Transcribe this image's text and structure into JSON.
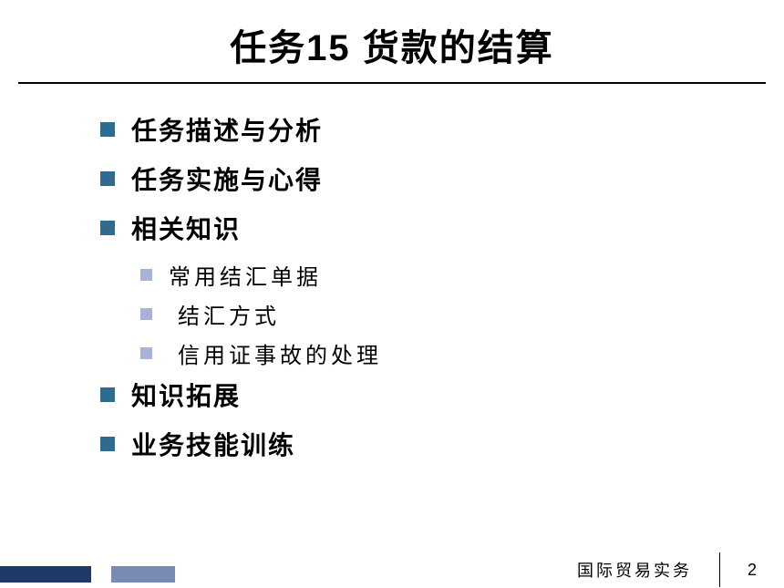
{
  "title": "任务15 货款的结算",
  "bullets": {
    "item1": "任务描述与分析",
    "item2": "任务实施与心得",
    "item3": "相关知识",
    "sub1": "常用结汇单据",
    "sub2": "结汇方式",
    "sub3": "信用证事故的处理",
    "item4": "知识拓展",
    "item5": "业务技能训练"
  },
  "footer": {
    "course": "国际贸易实务",
    "page": "2"
  },
  "colors": {
    "main_bullet": "#2f6b8f",
    "sub_bullet": "#a8b3d8",
    "footer_dark": "#1f3a66",
    "footer_light": "#7a8bb3",
    "text": "#000000",
    "background": "#ffffff"
  },
  "typography": {
    "title_fontsize": 40,
    "main_item_fontsize": 28,
    "sub_item_fontsize": 24,
    "footer_fontsize": 18
  }
}
